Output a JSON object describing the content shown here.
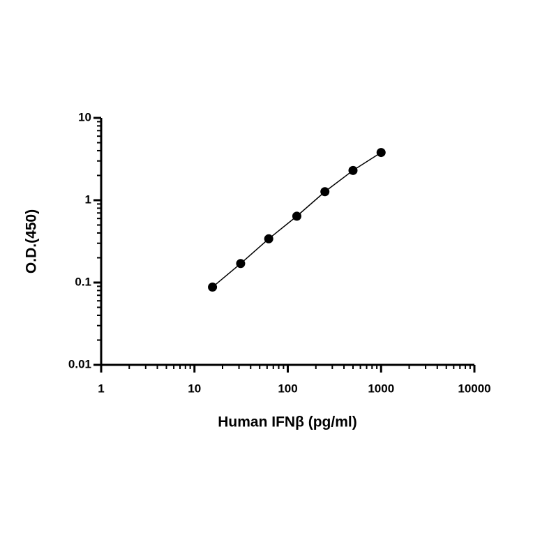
{
  "chart_data": {
    "type": "scatter",
    "x_label": "Human IFNβ (pg/ml)",
    "y_label": "O.D.(450)",
    "x_scale": "log",
    "y_scale": "log",
    "xlim": [
      1,
      10000
    ],
    "xticks": [
      1,
      10,
      100,
      1000,
      10000
    ],
    "ylim": [
      0.01,
      10
    ],
    "yticks": [
      0.01,
      0.1,
      1,
      10
    ],
    "connect_points": true,
    "series": [
      {
        "color": "#000000",
        "x": [
          15.6,
          31.25,
          62.5,
          125,
          250,
          500,
          1000
        ],
        "values": [
          0.088,
          0.17,
          0.34,
          0.64,
          1.27,
          2.3,
          3.8
        ]
      }
    ]
  }
}
